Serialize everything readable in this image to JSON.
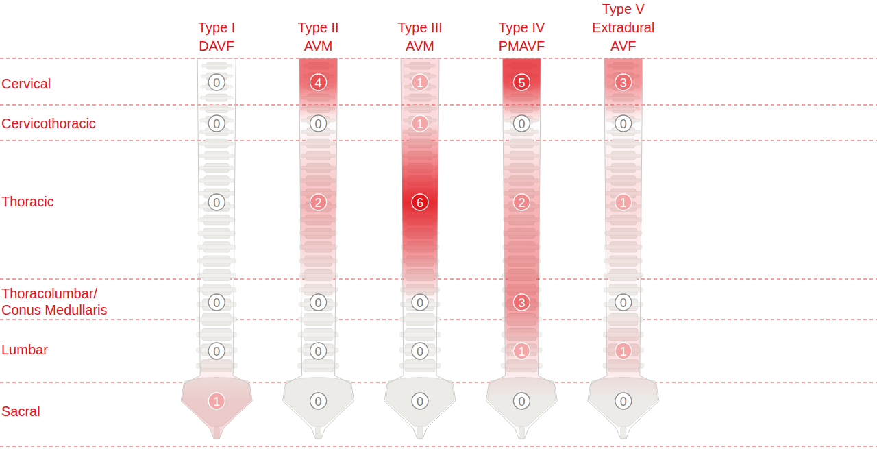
{
  "chart_data": {
    "type": "heatmap",
    "columns": [
      [
        "Type I",
        "DAVF"
      ],
      [
        "Type II",
        "AVM"
      ],
      [
        "Type III",
        "AVM"
      ],
      [
        "Type IV",
        "PMAVF"
      ],
      [
        "Type V",
        "Extradural",
        "AVF"
      ]
    ],
    "rows": [
      [
        "Cervical"
      ],
      [
        "Cervicothoracic"
      ],
      [
        "Thoracic"
      ],
      [
        "Thoracolumbar/",
        "Conus Medullaris"
      ],
      [
        "Lumbar"
      ],
      [
        "Sacral"
      ]
    ],
    "values": [
      [
        0,
        4,
        1,
        5,
        3
      ],
      [
        0,
        0,
        1,
        0,
        0
      ],
      [
        0,
        2,
        6,
        2,
        1
      ],
      [
        0,
        0,
        0,
        3,
        0
      ],
      [
        0,
        0,
        0,
        1,
        1
      ],
      [
        1,
        0,
        0,
        0,
        0
      ]
    ],
    "color": "#e4141c",
    "data_labels": true
  }
}
